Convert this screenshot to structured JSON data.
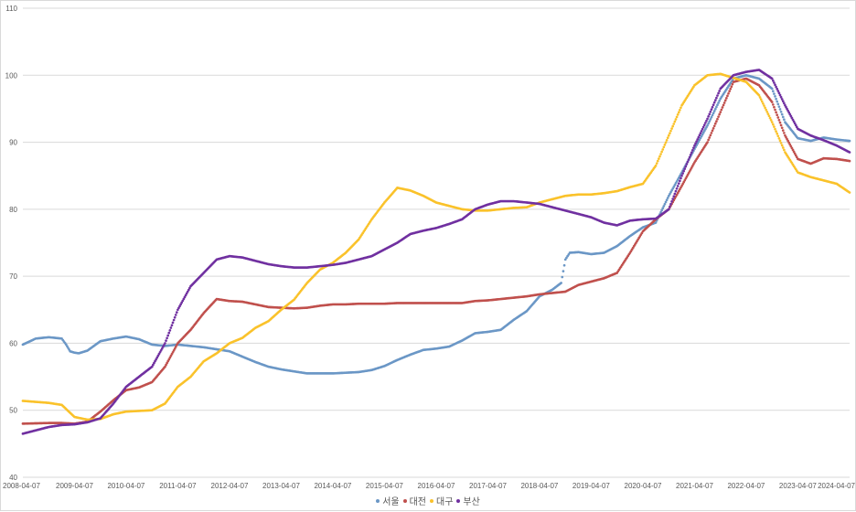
{
  "chart_data": {
    "type": "scatter",
    "title": "",
    "xlabel": "",
    "ylabel": "",
    "ylim": [
      40,
      110
    ],
    "yticks": [
      40,
      50,
      60,
      70,
      80,
      90,
      100,
      110
    ],
    "ytick_labels": [
      "40",
      "50",
      "60",
      "70",
      "80",
      "90",
      "100",
      "110"
    ],
    "xlim": [
      "2008-04-07",
      "2024-04-07"
    ],
    "xtick_labels": [
      "2008-04-07",
      "2009-04-07",
      "2010-04-07",
      "2011-04-07",
      "2012-04-07",
      "2013-04-07",
      "2014-04-07",
      "2015-04-07",
      "2016-04-07",
      "2017-04-07",
      "2018-04-07",
      "2019-04-07",
      "2020-04-07",
      "2021-04-07",
      "2022-04-07",
      "2023-04-07",
      "2024-04-07"
    ],
    "grid": true,
    "legend_position": "bottom",
    "series": [
      {
        "name": "서울",
        "color": "#6b97c6",
        "points": [
          [
            "2008-04-07",
            59.8
          ],
          [
            "2008-07-07",
            60.7
          ],
          [
            "2008-10-07",
            60.9
          ],
          [
            "2009-01-07",
            60.7
          ],
          [
            "2009-02-07",
            59.8
          ],
          [
            "2009-03-07",
            58.8
          ],
          [
            "2009-04-07",
            58.6
          ],
          [
            "2009-05-07",
            58.5
          ],
          [
            "2009-07-07",
            58.9
          ],
          [
            "2009-10-07",
            60.3
          ],
          [
            "2010-01-07",
            60.7
          ],
          [
            "2010-04-07",
            61.0
          ],
          [
            "2010-07-07",
            60.6
          ],
          [
            "2010-10-07",
            59.8
          ],
          [
            "2011-01-07",
            59.6
          ],
          [
            "2011-04-07",
            59.8
          ],
          [
            "2011-07-07",
            59.6
          ],
          [
            "2011-10-07",
            59.4
          ],
          [
            "2012-01-07",
            59.1
          ],
          [
            "2012-04-07",
            58.8
          ],
          [
            "2012-07-07",
            58.0
          ],
          [
            "2012-10-07",
            57.2
          ],
          [
            "2013-01-07",
            56.5
          ],
          [
            "2013-04-07",
            56.1
          ],
          [
            "2013-07-07",
            55.8
          ],
          [
            "2013-10-07",
            55.5
          ],
          [
            "2014-01-07",
            55.5
          ],
          [
            "2014-04-07",
            55.5
          ],
          [
            "2014-07-07",
            55.6
          ],
          [
            "2014-10-07",
            55.7
          ],
          [
            "2015-01-07",
            56.0
          ],
          [
            "2015-04-07",
            56.6
          ],
          [
            "2015-07-07",
            57.5
          ],
          [
            "2015-10-07",
            58.3
          ],
          [
            "2016-01-07",
            59.0
          ],
          [
            "2016-04-07",
            59.2
          ],
          [
            "2016-07-07",
            59.5
          ],
          [
            "2016-10-07",
            60.4
          ],
          [
            "2017-01-07",
            61.5
          ],
          [
            "2017-04-07",
            61.7
          ],
          [
            "2017-07-07",
            62.0
          ],
          [
            "2017-10-07",
            63.5
          ],
          [
            "2018-01-07",
            64.8
          ],
          [
            "2018-04-07",
            67.0
          ],
          [
            "2018-07-07",
            68.0
          ],
          [
            "2018-09-07",
            69.0
          ],
          [
            "2018-10-07",
            72.5
          ],
          [
            "2018-11-07",
            73.5
          ],
          [
            "2019-01-07",
            73.6
          ],
          [
            "2019-04-07",
            73.3
          ],
          [
            "2019-07-07",
            73.5
          ],
          [
            "2019-10-07",
            74.5
          ],
          [
            "2020-01-07",
            76.0
          ],
          [
            "2020-04-07",
            77.3
          ],
          [
            "2020-07-07",
            78.0
          ],
          [
            "2020-10-07",
            82.0
          ],
          [
            "2021-01-07",
            85.5
          ],
          [
            "2021-04-07",
            89.0
          ],
          [
            "2021-07-07",
            92.5
          ],
          [
            "2021-10-07",
            96.5
          ],
          [
            "2022-01-07",
            99.5
          ],
          [
            "2022-04-07",
            100.0
          ],
          [
            "2022-07-07",
            99.5
          ],
          [
            "2022-10-07",
            98.0
          ],
          [
            "2023-01-07",
            93.0
          ],
          [
            "2023-04-07",
            90.6
          ],
          [
            "2023-07-07",
            90.2
          ],
          [
            "2023-10-07",
            90.7
          ],
          [
            "2024-01-07",
            90.4
          ],
          [
            "2024-04-07",
            90.2
          ]
        ]
      },
      {
        "name": "대전",
        "color": "#c0504d",
        "points": [
          [
            "2008-04-07",
            48.0
          ],
          [
            "2008-10-07",
            48.1
          ],
          [
            "2009-01-07",
            48.1
          ],
          [
            "2009-04-07",
            48.0
          ],
          [
            "2009-07-07",
            48.3
          ],
          [
            "2009-10-07",
            49.8
          ],
          [
            "2010-01-07",
            51.5
          ],
          [
            "2010-04-07",
            53.0
          ],
          [
            "2010-07-07",
            53.4
          ],
          [
            "2010-10-07",
            54.2
          ],
          [
            "2011-01-07",
            56.5
          ],
          [
            "2011-04-07",
            60.0
          ],
          [
            "2011-07-07",
            62.0
          ],
          [
            "2011-10-07",
            64.5
          ],
          [
            "2012-01-07",
            66.6
          ],
          [
            "2012-04-07",
            66.3
          ],
          [
            "2012-07-07",
            66.2
          ],
          [
            "2012-10-07",
            65.8
          ],
          [
            "2013-01-07",
            65.4
          ],
          [
            "2013-04-07",
            65.3
          ],
          [
            "2013-07-07",
            65.2
          ],
          [
            "2013-10-07",
            65.3
          ],
          [
            "2014-01-07",
            65.6
          ],
          [
            "2014-04-07",
            65.8
          ],
          [
            "2014-07-07",
            65.8
          ],
          [
            "2014-10-07",
            65.9
          ],
          [
            "2015-01-07",
            65.9
          ],
          [
            "2015-04-07",
            65.9
          ],
          [
            "2015-07-07",
            66.0
          ],
          [
            "2016-01-07",
            66.0
          ],
          [
            "2016-04-07",
            66.0
          ],
          [
            "2016-10-07",
            66.0
          ],
          [
            "2017-01-07",
            66.3
          ],
          [
            "2017-04-07",
            66.4
          ],
          [
            "2017-10-07",
            66.8
          ],
          [
            "2018-01-07",
            67.0
          ],
          [
            "2018-04-07",
            67.3
          ],
          [
            "2018-07-07",
            67.5
          ],
          [
            "2018-10-07",
            67.7
          ],
          [
            "2019-01-07",
            68.7
          ],
          [
            "2019-04-07",
            69.2
          ],
          [
            "2019-07-07",
            69.7
          ],
          [
            "2019-10-07",
            70.5
          ],
          [
            "2020-01-07",
            73.5
          ],
          [
            "2020-04-07",
            76.7
          ],
          [
            "2020-07-07",
            78.5
          ],
          [
            "2020-10-07",
            80.0
          ],
          [
            "2021-01-07",
            83.5
          ],
          [
            "2021-04-07",
            87.0
          ],
          [
            "2021-07-07",
            90.0
          ],
          [
            "2021-10-07",
            94.5
          ],
          [
            "2022-01-07",
            99.0
          ],
          [
            "2022-04-07",
            99.5
          ],
          [
            "2022-07-07",
            98.5
          ],
          [
            "2022-10-07",
            96.0
          ],
          [
            "2023-01-07",
            91.0
          ],
          [
            "2023-04-07",
            87.5
          ],
          [
            "2023-07-07",
            86.8
          ],
          [
            "2023-10-07",
            87.6
          ],
          [
            "2024-01-07",
            87.5
          ],
          [
            "2024-04-07",
            87.2
          ]
        ]
      },
      {
        "name": "대구",
        "color": "#fac22b",
        "points": [
          [
            "2008-04-07",
            51.4
          ],
          [
            "2008-10-07",
            51.1
          ],
          [
            "2009-01-07",
            50.8
          ],
          [
            "2009-04-07",
            49.0
          ],
          [
            "2009-07-07",
            48.6
          ],
          [
            "2009-10-07",
            48.7
          ],
          [
            "2010-01-07",
            49.4
          ],
          [
            "2010-04-07",
            49.8
          ],
          [
            "2010-07-07",
            49.9
          ],
          [
            "2010-10-07",
            50.0
          ],
          [
            "2011-01-07",
            51.0
          ],
          [
            "2011-04-07",
            53.5
          ],
          [
            "2011-07-07",
            55.0
          ],
          [
            "2011-10-07",
            57.3
          ],
          [
            "2012-01-07",
            58.5
          ],
          [
            "2012-04-07",
            60.0
          ],
          [
            "2012-07-07",
            60.8
          ],
          [
            "2012-10-07",
            62.3
          ],
          [
            "2013-01-07",
            63.3
          ],
          [
            "2013-04-07",
            65.0
          ],
          [
            "2013-07-07",
            66.5
          ],
          [
            "2013-10-07",
            69.0
          ],
          [
            "2014-01-07",
            71.0
          ],
          [
            "2014-04-07",
            72.0
          ],
          [
            "2014-07-07",
            73.5
          ],
          [
            "2014-10-07",
            75.5
          ],
          [
            "2015-01-07",
            78.5
          ],
          [
            "2015-04-07",
            81.0
          ],
          [
            "2015-07-07",
            83.2
          ],
          [
            "2015-10-07",
            82.8
          ],
          [
            "2016-01-07",
            82.0
          ],
          [
            "2016-04-07",
            81.0
          ],
          [
            "2016-07-07",
            80.5
          ],
          [
            "2016-10-07",
            80.0
          ],
          [
            "2017-01-07",
            79.8
          ],
          [
            "2017-04-07",
            79.8
          ],
          [
            "2017-07-07",
            80.0
          ],
          [
            "2017-10-07",
            80.2
          ],
          [
            "2018-01-07",
            80.3
          ],
          [
            "2018-04-07",
            81.0
          ],
          [
            "2018-07-07",
            81.5
          ],
          [
            "2018-10-07",
            82.0
          ],
          [
            "2019-01-07",
            82.2
          ],
          [
            "2019-04-07",
            82.2
          ],
          [
            "2019-07-07",
            82.4
          ],
          [
            "2019-10-07",
            82.7
          ],
          [
            "2020-01-07",
            83.3
          ],
          [
            "2020-04-07",
            83.8
          ],
          [
            "2020-07-07",
            86.5
          ],
          [
            "2020-10-07",
            91.0
          ],
          [
            "2021-01-07",
            95.5
          ],
          [
            "2021-04-07",
            98.5
          ],
          [
            "2021-07-07",
            100.0
          ],
          [
            "2021-10-07",
            100.2
          ],
          [
            "2022-01-07",
            99.6
          ],
          [
            "2022-04-07",
            99.0
          ],
          [
            "2022-07-07",
            97.0
          ],
          [
            "2022-10-07",
            93.0
          ],
          [
            "2023-01-07",
            88.5
          ],
          [
            "2023-04-07",
            85.5
          ],
          [
            "2023-07-07",
            84.8
          ],
          [
            "2023-10-07",
            84.3
          ],
          [
            "2024-01-07",
            83.8
          ],
          [
            "2024-04-07",
            82.5
          ]
        ]
      },
      {
        "name": "부산",
        "color": "#7030a0",
        "points": [
          [
            "2008-04-07",
            46.5
          ],
          [
            "2008-07-07",
            47.0
          ],
          [
            "2008-10-07",
            47.5
          ],
          [
            "2009-01-07",
            47.8
          ],
          [
            "2009-04-07",
            47.9
          ],
          [
            "2009-07-07",
            48.2
          ],
          [
            "2009-10-07",
            48.8
          ],
          [
            "2010-01-07",
            51.0
          ],
          [
            "2010-04-07",
            53.5
          ],
          [
            "2010-07-07",
            55.0
          ],
          [
            "2010-10-07",
            56.5
          ],
          [
            "2011-01-07",
            60.0
          ],
          [
            "2011-04-07",
            65.0
          ],
          [
            "2011-07-07",
            68.5
          ],
          [
            "2011-10-07",
            70.5
          ],
          [
            "2012-01-07",
            72.5
          ],
          [
            "2012-04-07",
            73.0
          ],
          [
            "2012-07-07",
            72.8
          ],
          [
            "2012-10-07",
            72.3
          ],
          [
            "2013-01-07",
            71.8
          ],
          [
            "2013-04-07",
            71.5
          ],
          [
            "2013-07-07",
            71.3
          ],
          [
            "2013-10-07",
            71.3
          ],
          [
            "2014-01-07",
            71.5
          ],
          [
            "2014-04-07",
            71.7
          ],
          [
            "2014-07-07",
            72.0
          ],
          [
            "2014-10-07",
            72.5
          ],
          [
            "2015-01-07",
            73.0
          ],
          [
            "2015-04-07",
            74.0
          ],
          [
            "2015-07-07",
            75.0
          ],
          [
            "2015-10-07",
            76.3
          ],
          [
            "2016-01-07",
            76.8
          ],
          [
            "2016-04-07",
            77.2
          ],
          [
            "2016-07-07",
            77.8
          ],
          [
            "2016-10-07",
            78.5
          ],
          [
            "2017-01-07",
            80.0
          ],
          [
            "2017-04-07",
            80.7
          ],
          [
            "2017-07-07",
            81.2
          ],
          [
            "2017-10-07",
            81.2
          ],
          [
            "2018-01-07",
            81.0
          ],
          [
            "2018-04-07",
            80.8
          ],
          [
            "2018-07-07",
            80.3
          ],
          [
            "2018-10-07",
            79.8
          ],
          [
            "2019-01-07",
            79.3
          ],
          [
            "2019-04-07",
            78.8
          ],
          [
            "2019-07-07",
            78.0
          ],
          [
            "2019-10-07",
            77.6
          ],
          [
            "2020-01-07",
            78.3
          ],
          [
            "2020-04-07",
            78.5
          ],
          [
            "2020-07-07",
            78.6
          ],
          [
            "2020-10-07",
            80.0
          ],
          [
            "2021-01-07",
            85.0
          ],
          [
            "2021-04-07",
            89.5
          ],
          [
            "2021-07-07",
            93.5
          ],
          [
            "2021-10-07",
            98.0
          ],
          [
            "2022-01-07",
            100.0
          ],
          [
            "2022-04-07",
            100.5
          ],
          [
            "2022-07-07",
            100.8
          ],
          [
            "2022-10-07",
            99.5
          ],
          [
            "2023-01-07",
            95.5
          ],
          [
            "2023-04-07",
            92.0
          ],
          [
            "2023-07-07",
            91.0
          ],
          [
            "2023-10-07",
            90.3
          ],
          [
            "2024-01-07",
            89.5
          ],
          [
            "2024-04-07",
            88.5
          ]
        ]
      }
    ]
  }
}
